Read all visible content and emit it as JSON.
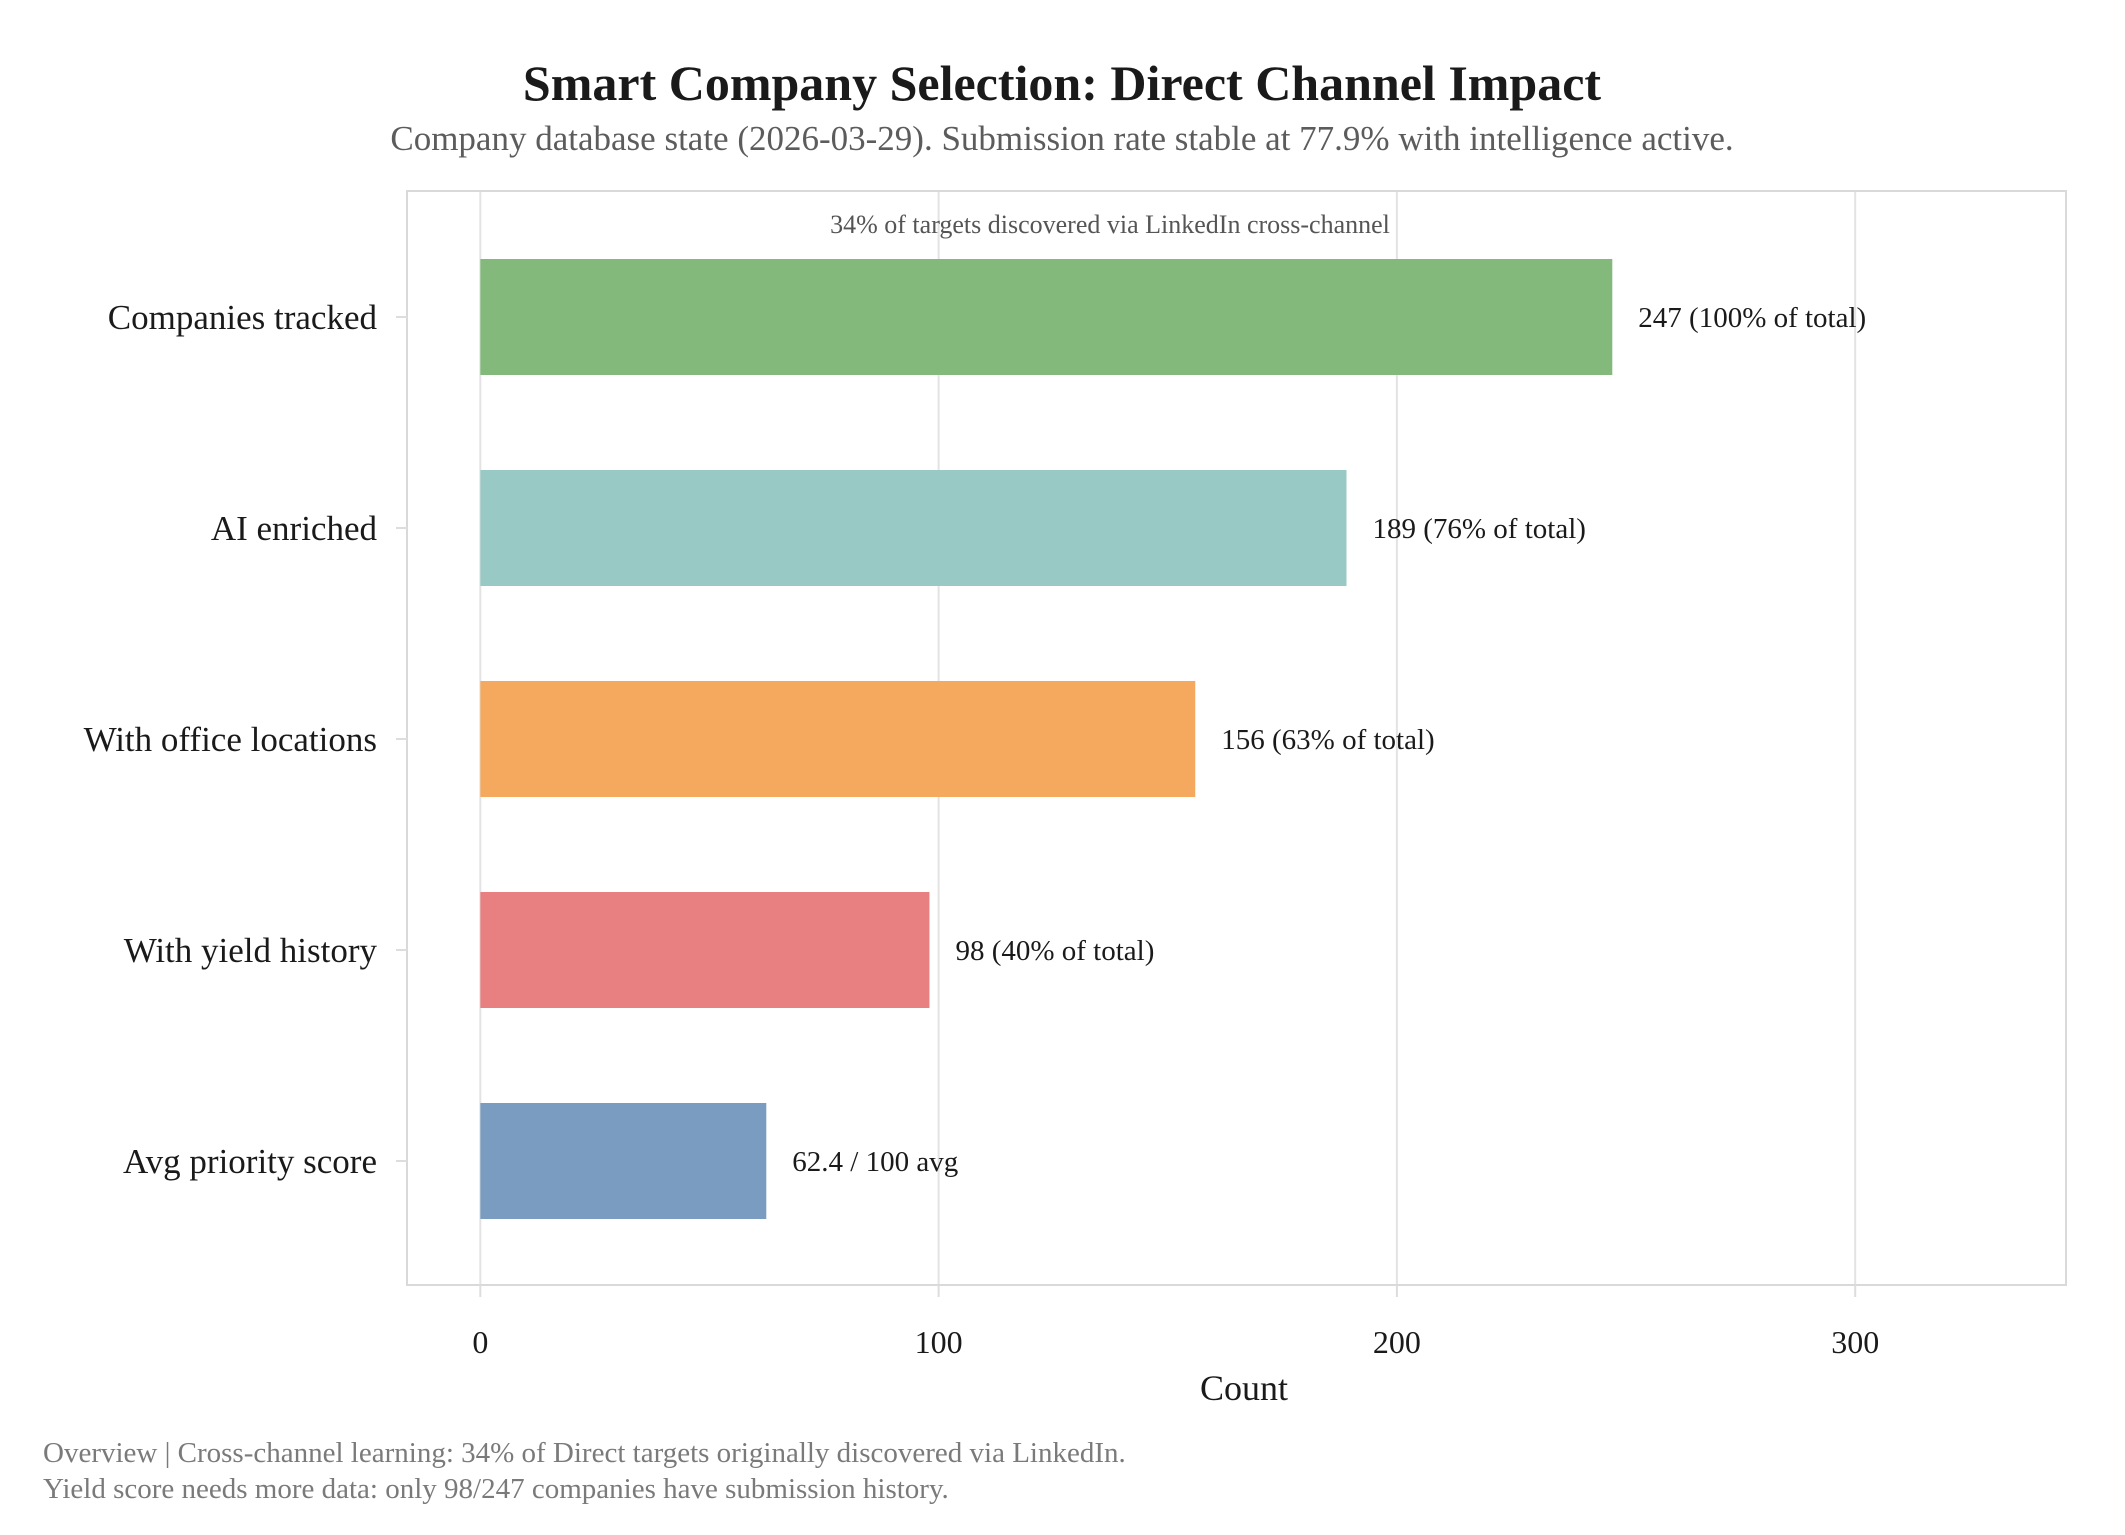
{
  "chart_data": {
    "type": "bar",
    "orientation": "horizontal",
    "title": "Smart Company Selection: Direct Channel Impact",
    "subtitle": "Company database state (2026-03-29). Submission rate stable at 77.9% with intelligence active.",
    "annotation": "34% of targets discovered via LinkedIn cross-channel",
    "categories": [
      "Companies tracked",
      "AI enriched",
      "With office locations",
      "With yield history",
      "Avg priority score"
    ],
    "values": [
      247,
      189,
      156,
      98,
      62.4
    ],
    "value_labels": [
      "247 (100% of total)",
      "189 (76% of total)",
      "156 (63% of total)",
      "98 (40% of total)",
      "62.4 / 100 avg"
    ],
    "colors": [
      "#83b97a",
      "#99c9c4",
      "#f4a95f",
      "#e87f80",
      "#7a9cc0"
    ],
    "xlabel": "Count",
    "ylabel": "",
    "xlim": [
      -16,
      346
    ],
    "xticks": [
      0,
      100,
      200,
      300
    ],
    "xtick_labels": [
      "0",
      "100",
      "200",
      "300"
    ],
    "grid": true,
    "legend": "none"
  },
  "footer": {
    "line1": "Overview | Cross-channel learning: 34% of Direct targets originally discovered via LinkedIn.",
    "line2": "Yield score needs more data: only 98/247 companies have submission history."
  }
}
